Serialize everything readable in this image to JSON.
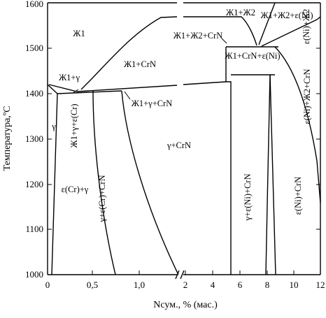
{
  "chart_data": {
    "type": "phase-diagram",
    "title": "",
    "xlabel": "Nсум., % (мас.)",
    "ylabel": "Температура,ºС",
    "ylim": [
      1000,
      1600
    ],
    "y_ticks": [
      "1000",
      "1100",
      "1200",
      "1300",
      "1400",
      "1500",
      "1600"
    ],
    "x_ticks_left": [
      "0",
      "0,5",
      "1,0"
    ],
    "x_ticks_right": [
      "2",
      "4",
      "6",
      "8",
      "10",
      "12"
    ],
    "x_axis_note": "broken axis: 0–1.5 % (linear) and 2–12 % (linear)",
    "regions": [
      "Ж1",
      "Ж1+Ж2",
      "Ж1+Ж2+ε(Ni)",
      "ε(Ni)+Ж2",
      "Ж1+Ж2+CrN",
      "Ж1+CrN+ε(Ni)",
      "Ж1+CrN",
      "Ж1+γ",
      "Ж1+γ+ε(Cr)",
      "Ж1+γ+CrN",
      "γ",
      "γ+CrN",
      "ε(Cr)+γ",
      "γ+ε(Cr)+CrN",
      "γ+ε(Ni)+CrN",
      "ε(Ni)+CrN",
      "ε(Ni)+Ж2+CrN"
    ]
  }
}
